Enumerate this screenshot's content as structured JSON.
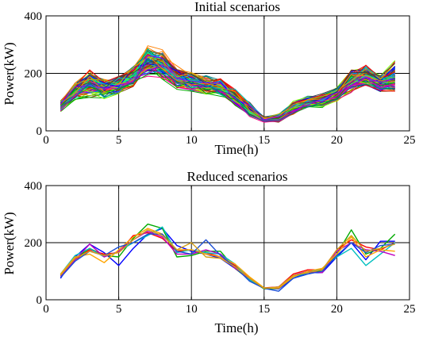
{
  "chart_data": [
    {
      "type": "line",
      "title": "Initial scenarios",
      "xlabel": "Time(h)",
      "ylabel": "Power(kW)",
      "xlim": [
        0,
        25
      ],
      "ylim": [
        0,
        400
      ],
      "xticks": [
        0,
        5,
        10,
        15,
        20,
        25
      ],
      "yticks": [
        0,
        200,
        400
      ],
      "grid": true,
      "x": [
        1,
        2,
        3,
        4,
        5,
        6,
        7,
        8,
        9,
        10,
        11,
        12,
        13,
        14,
        15,
        16,
        17,
        18,
        19,
        20,
        21,
        22,
        23,
        24
      ],
      "mean": [
        85,
        140,
        165,
        145,
        160,
        190,
        240,
        230,
        185,
        170,
        160,
        150,
        120,
        75,
        40,
        45,
        80,
        100,
        105,
        125,
        175,
        190,
        165,
        185
      ],
      "band_low": [
        62,
        100,
        115,
        110,
        120,
        150,
        190,
        180,
        140,
        135,
        120,
        110,
        85,
        50,
        30,
        30,
        55,
        75,
        80,
        100,
        130,
        145,
        130,
        125
      ],
      "band_high": [
        108,
        180,
        230,
        190,
        200,
        240,
        325,
        310,
        235,
        215,
        200,
        190,
        160,
        110,
        55,
        65,
        110,
        125,
        140,
        160,
        230,
        240,
        205,
        265
      ],
      "scenario_count": 100
    },
    {
      "type": "line",
      "title": "Reduced scenarios",
      "xlabel": "Time(h)",
      "ylabel": "Power(kW)",
      "xlim": [
        0,
        25
      ],
      "ylim": [
        0,
        400
      ],
      "xticks": [
        0,
        5,
        10,
        15,
        20,
        25
      ],
      "yticks": [
        0,
        200,
        400
      ],
      "grid": true,
      "x": [
        1,
        2,
        3,
        4,
        5,
        6,
        7,
        8,
        9,
        10,
        11,
        12,
        13,
        14,
        15,
        16,
        17,
        18,
        19,
        20,
        21,
        22,
        23,
        24
      ],
      "series": [
        {
          "color": "#0000ff",
          "values": [
            75,
            150,
            195,
            165,
            120,
            180,
            230,
            250,
            190,
            170,
            160,
            145,
            110,
            70,
            40,
            38,
            75,
            95,
            95,
            150,
            200,
            140,
            205,
            205
          ]
        },
        {
          "color": "#00aa00",
          "values": [
            85,
            145,
            180,
            155,
            150,
            215,
            265,
            250,
            150,
            155,
            170,
            170,
            110,
            70,
            38,
            40,
            85,
            100,
            100,
            160,
            245,
            160,
            180,
            230
          ]
        },
        {
          "color": "#ff0000",
          "values": [
            88,
            140,
            175,
            160,
            165,
            225,
            235,
            215,
            170,
            175,
            165,
            150,
            120,
            75,
            42,
            45,
            90,
            105,
            105,
            175,
            210,
            185,
            175,
            200
          ]
        },
        {
          "color": "#00bfbf",
          "values": [
            90,
            155,
            180,
            150,
            170,
            200,
            225,
            255,
            165,
            175,
            165,
            160,
            125,
            70,
            42,
            40,
            80,
            95,
            110,
            150,
            180,
            120,
            160,
            200
          ]
        },
        {
          "color": "#bf00bf",
          "values": [
            82,
            140,
            195,
            150,
            170,
            210,
            240,
            220,
            160,
            160,
            175,
            160,
            110,
            75,
            40,
            45,
            85,
            100,
            95,
            170,
            200,
            175,
            170,
            155
          ]
        },
        {
          "color": "#ffa500",
          "values": [
            90,
            150,
            160,
            130,
            175,
            220,
            250,
            230,
            175,
            175,
            160,
            150,
            125,
            80,
            42,
            40,
            80,
            100,
            110,
            160,
            220,
            150,
            175,
            170
          ]
        },
        {
          "color": "#1a4fd6",
          "values": [
            78,
            135,
            170,
            155,
            185,
            200,
            230,
            230,
            170,
            160,
            210,
            155,
            115,
            65,
            40,
            30,
            75,
            90,
            100,
            155,
            200,
            165,
            190,
            195
          ]
        },
        {
          "color": "#d4a017",
          "values": [
            86,
            145,
            170,
            155,
            165,
            210,
            245,
            225,
            175,
            200,
            150,
            145,
            115,
            75,
            40,
            45,
            85,
            95,
            105,
            175,
            225,
            170,
            180,
            195
          ]
        }
      ]
    }
  ]
}
